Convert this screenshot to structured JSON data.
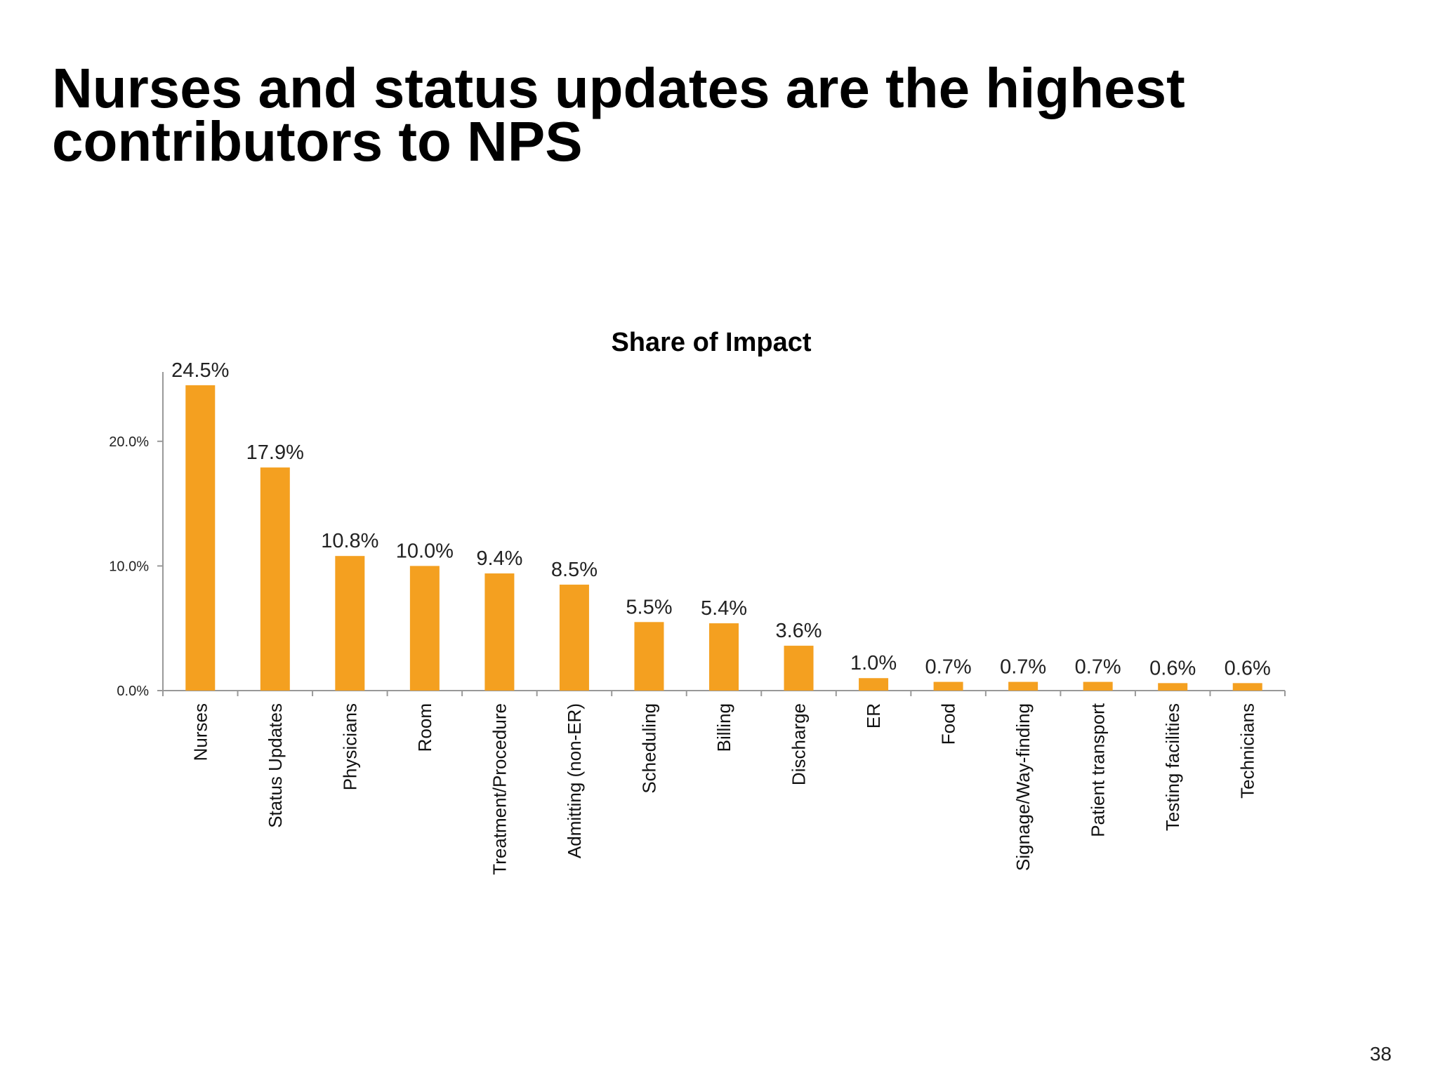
{
  "slide": {
    "title": "Nurses and status updates are the highest contributors to NPS",
    "page_number": "38"
  },
  "colors": {
    "bar": "#F4A020",
    "axis": "#999999"
  },
  "chart_data": {
    "type": "bar",
    "title": "Share of Impact",
    "xlabel": "",
    "ylabel": "",
    "ylim": [
      0,
      25
    ],
    "yticks": [
      0,
      10,
      20
    ],
    "ytick_labels": [
      "0.0%",
      "10.0%",
      "20.0%"
    ],
    "grid": false,
    "legend": "none",
    "categories": [
      "Nurses",
      "Status Updates",
      "Physicians",
      "Room",
      "Treatment/Procedure",
      "Admitting (non-ER)",
      "Scheduling",
      "Billing",
      "Discharge",
      "ER",
      "Food",
      "Signage/Way-finding",
      "Patient transport",
      "Testing facilities",
      "Technicians"
    ],
    "values": [
      24.5,
      17.9,
      10.8,
      10.0,
      9.4,
      8.5,
      5.5,
      5.4,
      3.6,
      1.0,
      0.7,
      0.7,
      0.7,
      0.6,
      0.6
    ],
    "data_labels": [
      "24.5%",
      "17.9%",
      "10.8%",
      "10.0%",
      "9.4%",
      "8.5%",
      "5.5%",
      "5.4%",
      "3.6%",
      "1.0%",
      "0.7%",
      "0.7%",
      "0.7%",
      "0.6%",
      "0.6%"
    ]
  }
}
